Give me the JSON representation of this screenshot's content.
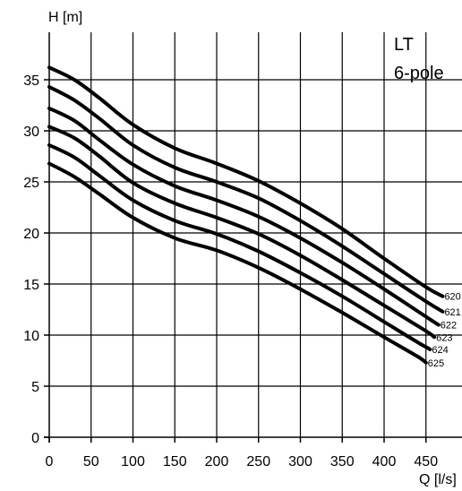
{
  "chart_data": {
    "type": "line",
    "title": "",
    "xlabel": "Q [l/s]",
    "ylabel": "H [m]",
    "box_lines": [
      "LT",
      "6-pole"
    ],
    "xlim": [
      0,
      490
    ],
    "ylim": [
      0,
      40
    ],
    "xticks": [
      0,
      50,
      100,
      150,
      200,
      250,
      300,
      350,
      400,
      450
    ],
    "yticks": [
      0,
      5,
      10,
      15,
      20,
      25,
      30,
      35
    ],
    "grid": true,
    "series": [
      {
        "name": "620",
        "x": [
          0,
          30,
          60,
          100,
          150,
          200,
          250,
          300,
          350,
          400,
          450,
          470
        ],
        "y": [
          36.2,
          35.0,
          33.2,
          30.6,
          28.3,
          26.8,
          25.1,
          22.9,
          20.4,
          17.5,
          14.7,
          13.8
        ]
      },
      {
        "name": "621",
        "x": [
          0,
          30,
          60,
          100,
          150,
          200,
          250,
          300,
          350,
          400,
          450,
          470
        ],
        "y": [
          34.3,
          33.0,
          31.2,
          28.6,
          26.4,
          25.0,
          23.4,
          21.2,
          18.7,
          16.0,
          13.3,
          12.3
        ]
      },
      {
        "name": "622",
        "x": [
          0,
          30,
          60,
          100,
          150,
          200,
          250,
          300,
          350,
          400,
          450,
          465
        ],
        "y": [
          32.2,
          31.0,
          29.1,
          26.7,
          24.6,
          23.2,
          21.6,
          19.5,
          17.1,
          14.5,
          11.8,
          11.0
        ]
      },
      {
        "name": "623",
        "x": [
          0,
          30,
          60,
          100,
          150,
          200,
          250,
          300,
          350,
          400,
          450,
          460
        ],
        "y": [
          30.4,
          29.3,
          27.5,
          24.9,
          22.9,
          21.5,
          19.9,
          17.8,
          15.4,
          12.9,
          10.4,
          9.8
        ]
      },
      {
        "name": "624",
        "x": [
          0,
          30,
          60,
          100,
          150,
          200,
          250,
          300,
          350,
          400,
          440,
          455
        ],
        "y": [
          28.6,
          27.4,
          25.6,
          23.2,
          21.2,
          19.9,
          18.2,
          16.1,
          13.8,
          11.3,
          9.3,
          8.6
        ]
      },
      {
        "name": "625",
        "x": [
          0,
          30,
          60,
          100,
          150,
          200,
          250,
          300,
          350,
          400,
          440,
          450
        ],
        "y": [
          26.8,
          25.5,
          23.8,
          21.5,
          19.5,
          18.3,
          16.6,
          14.5,
          12.2,
          9.8,
          7.9,
          7.3
        ]
      }
    ]
  }
}
